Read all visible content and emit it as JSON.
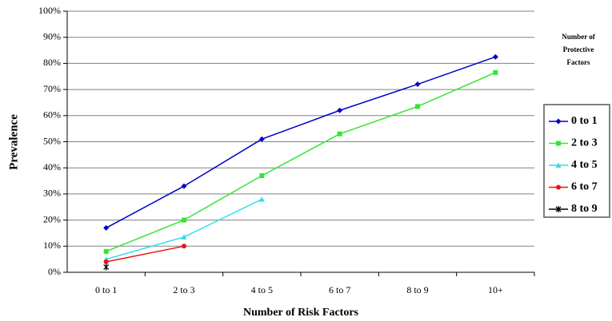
{
  "chart_data": {
    "type": "line",
    "categories": [
      "0 to 1",
      "2 to 3",
      "4 to 5",
      "6 to 7",
      "8 to 9",
      "10+"
    ],
    "series": [
      {
        "name": "0 to 1",
        "color": "#0000cc",
        "marker": "diamond",
        "values": [
          17,
          33,
          51,
          62,
          72,
          82.5
        ]
      },
      {
        "name": "2 to 3",
        "color": "#33e633",
        "marker": "square",
        "values": [
          8,
          20,
          37,
          53,
          63.5,
          76.5
        ]
      },
      {
        "name": "4 to 5",
        "color": "#33ddee",
        "marker": "triangle",
        "values": [
          5,
          13.5,
          28,
          null,
          null,
          null
        ]
      },
      {
        "name": "6 to 7",
        "color": "#ee1111",
        "marker": "circle",
        "values": [
          4,
          10,
          null,
          null,
          null,
          null
        ]
      },
      {
        "name": "8 to 9",
        "color": "#000000",
        "marker": "x",
        "values": [
          2,
          null,
          null,
          null,
          null,
          null
        ]
      }
    ],
    "ylim": [
      0,
      100
    ],
    "yticks": [
      {
        "value": 0,
        "label": "0%"
      },
      {
        "value": 10,
        "label": "10%"
      },
      {
        "value": 20,
        "label": "20%"
      },
      {
        "value": 30,
        "label": "30%"
      },
      {
        "value": 40,
        "label": "40%"
      },
      {
        "value": 50,
        "label": "50%"
      },
      {
        "value": 60,
        "label": "60%"
      },
      {
        "value": 70,
        "label": "70%"
      },
      {
        "value": 80,
        "label": "80%"
      },
      {
        "value": 90,
        "label": "90%"
      },
      {
        "value": 100,
        "label": "100%"
      }
    ],
    "grid": true,
    "xlabel": "Number of Risk Factors",
    "ylabel": "Prevalence",
    "legend_title": [
      "Number of",
      "Protective",
      "Factors"
    ],
    "legend": "right"
  }
}
